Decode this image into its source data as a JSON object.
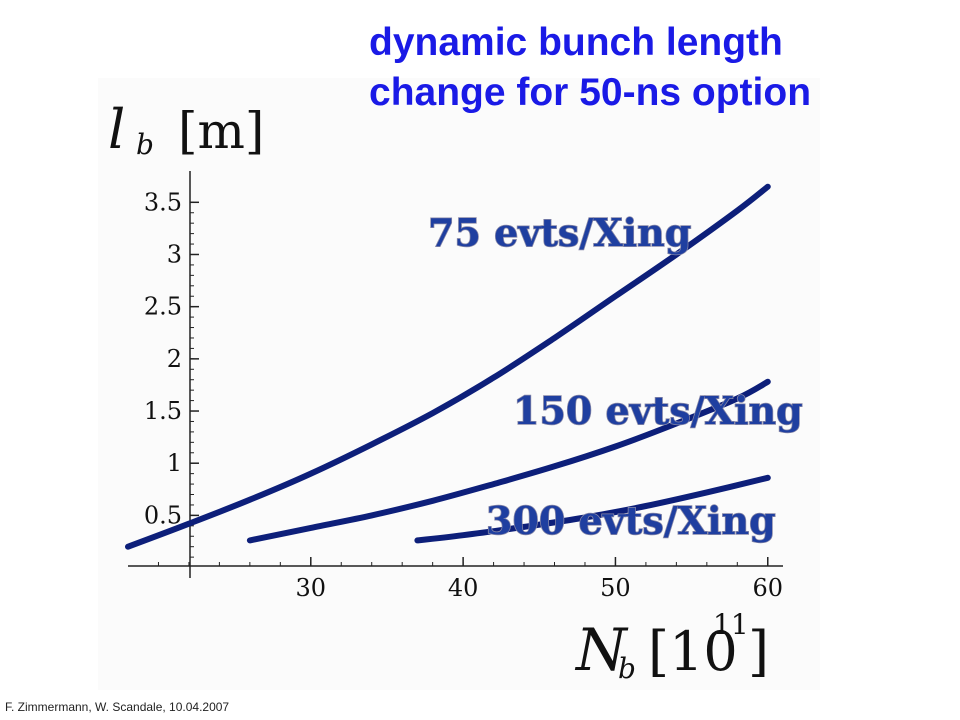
{
  "title": {
    "line1": "dynamic bunch length",
    "line2": "change for 50-ns option"
  },
  "footer": "F.  Zimmermann,  W.  Scandale, 10.04.2007",
  "colors": {
    "title": "#1a1ae6",
    "curve": "#0d1f7a",
    "label": "#1f3fa0",
    "axis": "#222222"
  },
  "chart_data": {
    "type": "line",
    "xlabel": {
      "symbol": "N",
      "sub": "b",
      "unit_open": "[10",
      "sup": "11",
      "unit_close": "]"
    },
    "ylabel": {
      "symbol": "l",
      "sub": "b",
      "unit": "[m]"
    },
    "xlim": [
      18,
      61
    ],
    "ylim": [
      -0.1,
      3.8
    ],
    "x_ticks": [
      30,
      40,
      50,
      60
    ],
    "y_ticks": [
      0.5,
      1,
      1.5,
      2,
      2.5,
      3,
      3.5
    ],
    "y_tick_labels": [
      "0.5",
      "1",
      "1.5",
      "2",
      "2.5",
      "3",
      "3.5"
    ],
    "series": [
      {
        "name": "75 evts/Xing",
        "x": [
          18,
          22,
          26,
          30,
          34,
          38,
          42,
          46,
          50,
          54,
          58,
          60
        ],
        "y": [
          0.2,
          0.42,
          0.65,
          0.9,
          1.18,
          1.48,
          1.82,
          2.2,
          2.6,
          3.0,
          3.42,
          3.65
        ]
      },
      {
        "name": "150 evts/Xing",
        "x": [
          26,
          30,
          34,
          38,
          42,
          46,
          50,
          54,
          58,
          60
        ],
        "y": [
          0.26,
          0.38,
          0.5,
          0.64,
          0.8,
          0.97,
          1.16,
          1.38,
          1.62,
          1.78
        ]
      },
      {
        "name": "300 evts/Xing",
        "x": [
          37,
          40,
          44,
          48,
          52,
          56,
          60
        ],
        "y": [
          0.26,
          0.31,
          0.39,
          0.48,
          0.59,
          0.72,
          0.86
        ]
      }
    ]
  }
}
